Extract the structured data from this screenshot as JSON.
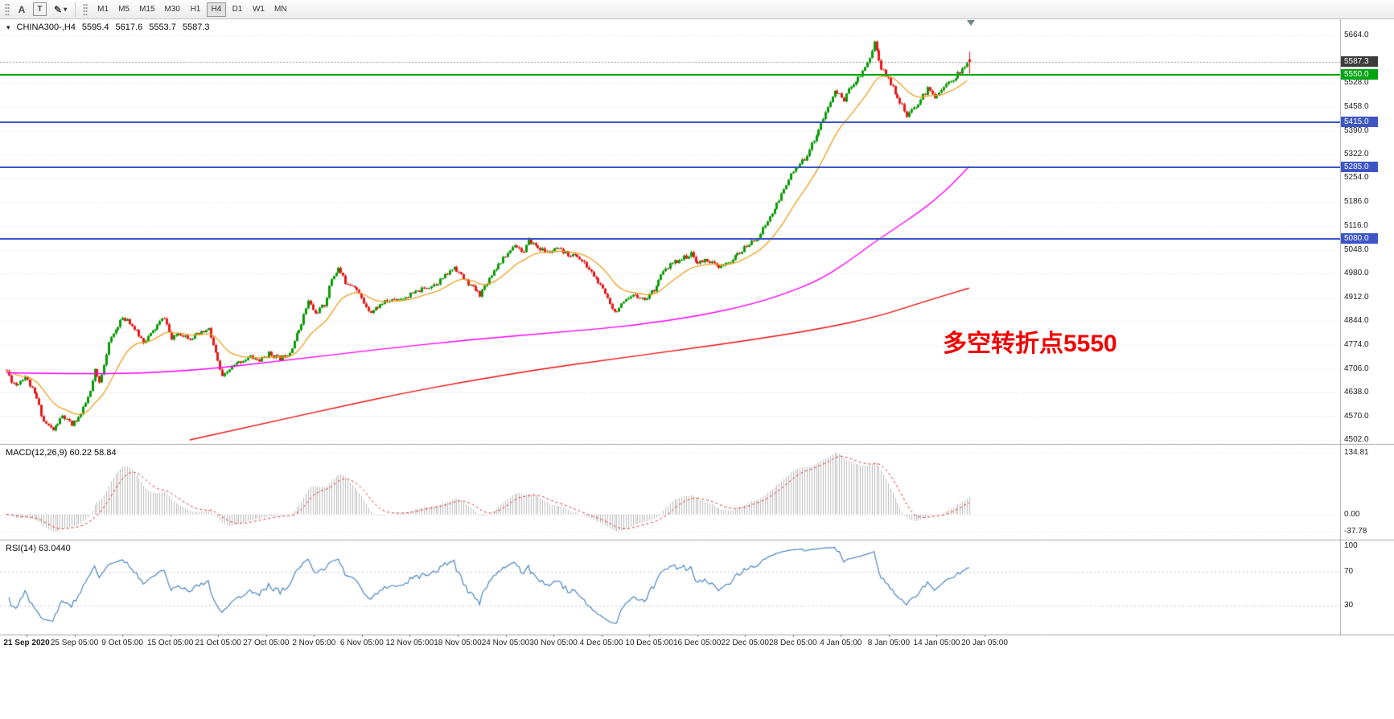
{
  "toolbar": {
    "buttons": [
      {
        "label": "A"
      },
      {
        "label": "T"
      },
      {
        "label": "✎",
        "caret": "▾"
      }
    ],
    "timeframes": [
      "M1",
      "M5",
      "M15",
      "M30",
      "H1",
      "H4",
      "D1",
      "W1",
      "MN"
    ],
    "selected_timeframe": "H4"
  },
  "chart": {
    "title_icon": "▾",
    "title": "CHINA300-,H4",
    "quote": {
      "open": "5595.4",
      "high": "5617.6",
      "low": "5553.7",
      "close": "5587.3"
    },
    "annotation": "多空转折点5550"
  },
  "macd_panel": {
    "label": "MACD(12,26,9) 60.22 58.84"
  },
  "rsi_panel": {
    "label": "RSI(14) 63.0440"
  },
  "chart_data": {
    "type": "candlestick",
    "symbol": "CHINA300-",
    "timeframe": "H4",
    "bars": 416,
    "last_bar": {
      "open": 5595.4,
      "high": 5617.6,
      "low": 5553.7,
      "close": 5587.3
    },
    "price_range": {
      "top": 5664.0,
      "bottom": 4502.0
    },
    "price_axis_ticks": [
      5664,
      5528,
      5458,
      5390,
      5322,
      5254,
      5186,
      5116,
      5048,
      4980,
      4912,
      4844,
      4774,
      4706,
      4638,
      4570,
      4502
    ],
    "last_price": {
      "price": 5587.3,
      "label": "5587.3",
      "badge_color": "#3c3c3c",
      "line_color": "#999999"
    },
    "levels": [
      {
        "price": 5550.0,
        "label": "5550.0",
        "color": "#00a510"
      },
      {
        "price": 5415.0,
        "label": "5415.0",
        "color": "#3d55c5"
      },
      {
        "price": 5285.0,
        "label": "5285.0",
        "color": "#3d55c5"
      },
      {
        "price": 5080.0,
        "label": "5080.0",
        "color": "#3d55c5"
      }
    ],
    "candle_colors": {
      "up": "#0b9b06",
      "down": "#e71818"
    },
    "price_waypoints": [
      [
        0,
        4700
      ],
      [
        2,
        4672
      ],
      [
        4,
        4660
      ],
      [
        8,
        4685
      ],
      [
        13,
        4620
      ],
      [
        16,
        4555
      ],
      [
        20,
        4530
      ],
      [
        24,
        4570
      ],
      [
        28,
        4545
      ],
      [
        32,
        4575
      ],
      [
        36,
        4640
      ],
      [
        38,
        4700
      ],
      [
        40,
        4665
      ],
      [
        44,
        4780
      ],
      [
        49,
        4845
      ],
      [
        52,
        4850
      ],
      [
        55,
        4820
      ],
      [
        59,
        4785
      ],
      [
        62,
        4805
      ],
      [
        66,
        4840
      ],
      [
        68,
        4855
      ],
      [
        71,
        4790
      ],
      [
        74,
        4810
      ],
      [
        79,
        4795
      ],
      [
        83,
        4805
      ],
      [
        87,
        4820
      ],
      [
        90,
        4750
      ],
      [
        93,
        4680
      ],
      [
        96,
        4705
      ],
      [
        100,
        4725
      ],
      [
        105,
        4740
      ],
      [
        109,
        4730
      ],
      [
        113,
        4750
      ],
      [
        118,
        4735
      ],
      [
        122,
        4755
      ],
      [
        126,
        4820
      ],
      [
        130,
        4900
      ],
      [
        133,
        4865
      ],
      [
        137,
        4890
      ],
      [
        140,
        4965
      ],
      [
        143,
        4995
      ],
      [
        146,
        4955
      ],
      [
        150,
        4945
      ],
      [
        154,
        4895
      ],
      [
        157,
        4870
      ],
      [
        162,
        4895
      ],
      [
        166,
        4905
      ],
      [
        171,
        4910
      ],
      [
        176,
        4925
      ],
      [
        181,
        4940
      ],
      [
        186,
        4955
      ],
      [
        191,
        4985
      ],
      [
        193,
        5000
      ],
      [
        197,
        4965
      ],
      [
        200,
        4945
      ],
      [
        204,
        4920
      ],
      [
        207,
        4955
      ],
      [
        210,
        4990
      ],
      [
        215,
        5030
      ],
      [
        219,
        5065
      ],
      [
        223,
        5040
      ],
      [
        225,
        5075
      ],
      [
        229,
        5055
      ],
      [
        233,
        5040
      ],
      [
        237,
        5050
      ],
      [
        242,
        5035
      ],
      [
        246,
        5030
      ],
      [
        250,
        5000
      ],
      [
        254,
        4965
      ],
      [
        259,
        4910
      ],
      [
        262,
        4870
      ],
      [
        267,
        4900
      ],
      [
        271,
        4920
      ],
      [
        275,
        4905
      ],
      [
        279,
        4935
      ],
      [
        282,
        4975
      ],
      [
        286,
        5005
      ],
      [
        290,
        5020
      ],
      [
        295,
        5035
      ],
      [
        298,
        5010
      ],
      [
        302,
        5020
      ],
      [
        307,
        4995
      ],
      [
        311,
        5010
      ],
      [
        316,
        5040
      ],
      [
        320,
        5065
      ],
      [
        324,
        5085
      ],
      [
        328,
        5130
      ],
      [
        333,
        5190
      ],
      [
        337,
        5255
      ],
      [
        341,
        5285
      ],
      [
        344,
        5310
      ],
      [
        348,
        5365
      ],
      [
        353,
        5440
      ],
      [
        357,
        5505
      ],
      [
        361,
        5480
      ],
      [
        364,
        5520
      ],
      [
        368,
        5550
      ],
      [
        372,
        5600
      ],
      [
        374,
        5645
      ],
      [
        377,
        5570
      ],
      [
        380,
        5540
      ],
      [
        385,
        5475
      ],
      [
        388,
        5430
      ],
      [
        393,
        5470
      ],
      [
        397,
        5510
      ],
      [
        400,
        5490
      ],
      [
        404,
        5515
      ],
      [
        408,
        5540
      ],
      [
        412,
        5565
      ],
      [
        415,
        5587
      ]
    ],
    "ma_lines": [
      {
        "name": "fast-ma",
        "type": "ema",
        "period": 20,
        "color": "#efa020"
      },
      {
        "name": "mid-ma",
        "type": "waypoints",
        "color": "#ff00ff",
        "points": [
          [
            0,
            4695
          ],
          [
            40,
            4690
          ],
          [
            80,
            4700
          ],
          [
            120,
            4730
          ],
          [
            160,
            4762
          ],
          [
            200,
            4790
          ],
          [
            240,
            4812
          ],
          [
            270,
            4830
          ],
          [
            300,
            4860
          ],
          [
            320,
            4890
          ],
          [
            335,
            4920
          ],
          [
            350,
            4960
          ],
          [
            362,
            5010
          ],
          [
            372,
            5060
          ],
          [
            382,
            5105
          ],
          [
            392,
            5150
          ],
          [
            400,
            5190
          ],
          [
            408,
            5238
          ],
          [
            415,
            5288
          ]
        ]
      },
      {
        "name": "slow-ma",
        "type": "waypoints",
        "color": "#ee1212",
        "points": [
          [
            79,
            4502
          ],
          [
            110,
            4548
          ],
          [
            140,
            4592
          ],
          [
            170,
            4635
          ],
          [
            200,
            4672
          ],
          [
            230,
            4705
          ],
          [
            260,
            4733
          ],
          [
            290,
            4760
          ],
          [
            320,
            4788
          ],
          [
            350,
            4820
          ],
          [
            375,
            4855
          ],
          [
            395,
            4898
          ],
          [
            415,
            4938
          ]
        ]
      }
    ],
    "macd": {
      "fast": 12,
      "slow": 26,
      "signal": 9,
      "main_value": 60.22,
      "signal_value": 58.84,
      "axis_max": 134.81,
      "axis_min": -37.78,
      "axis_labels": [
        {
          "v": 134.81,
          "label": "134.81"
        },
        {
          "v": 0,
          "label": "0.00"
        },
        {
          "v": -37.78,
          "label": "-37.78"
        }
      ],
      "histogram_color": "#bdbdbd",
      "signal_color": "#e03030"
    },
    "rsi": {
      "period": 14,
      "value": 63.044,
      "color": "#4a86c6",
      "levels": [
        70,
        30
      ],
      "axis_labels": [
        {
          "v": 100,
          "label": "100"
        },
        {
          "v": 70,
          "label": "70"
        },
        {
          "v": 30,
          "label": "30"
        }
      ]
    },
    "time_axis": [
      "21 Sep 2020",
      "25 Sep 05:00",
      "9 Oct 05:00",
      "15 Oct 05:00",
      "21 Oct 05:00",
      "27 Oct 05:00",
      "2 Nov 05:00",
      "6 Nov 05:00",
      "12 Nov 05:00",
      "18 Nov 05:00",
      "24 Nov 05:00",
      "30 Nov 05:00",
      "4 Dec 05:00",
      "10 Dec 05:00",
      "16 Dec 05:00",
      "22 Dec 05:00",
      "28 Dec 05:00",
      "4 Jan 05:00",
      "8 Jan 05:00",
      "14 Jan 05:00",
      "20 Jan 05:00"
    ],
    "synth": {
      "seed": 11,
      "wiggle": 6.5,
      "wick": 4.5
    }
  }
}
